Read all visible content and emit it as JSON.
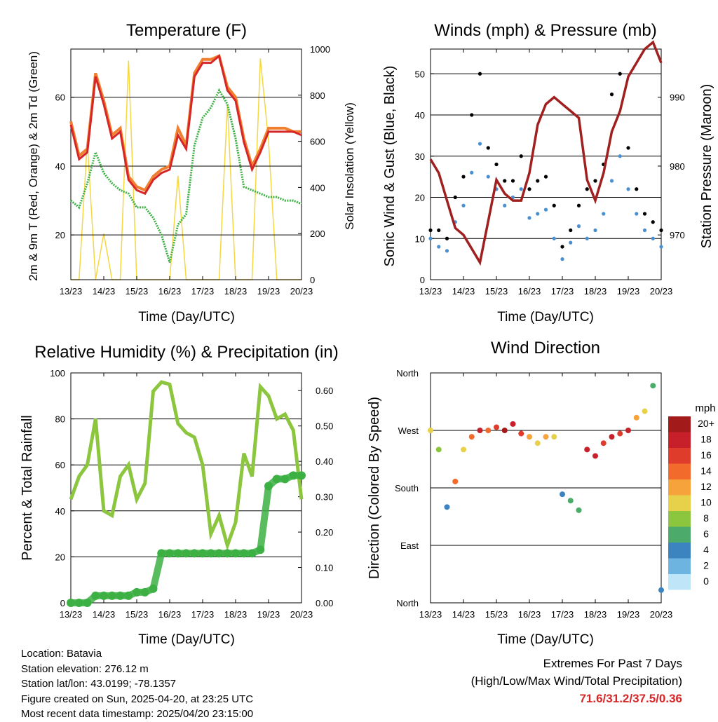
{
  "panels": {
    "temperature": {
      "title": "Temperature (F)",
      "xlabel": "Time (Day/UTC)",
      "ylabel_left": "2m & 9m T (Red, Orange) & 2m Td (Green)",
      "ylabel_right": "Solar Insolation (Yellow)"
    },
    "winds": {
      "title": "Winds (mph) & Pressure (mb)",
      "xlabel": "Time (Day/UTC)",
      "ylabel_left": "Sonic Wind & Gust (Blue, Black)",
      "ylabel_right": "Station Pressure (Maroon)"
    },
    "rh": {
      "title": "Relative Humidity (%) & Precipitation (in)",
      "xlabel": "Time (Day/UTC)",
      "ylabel_left": "Percent & Total Rainfall"
    },
    "wdir": {
      "title": "Wind Direction",
      "xlabel": "Time (Day/UTC)",
      "ylabel_left": "Direction (Colored By Speed)",
      "legend_title": "mph"
    }
  },
  "info": {
    "location": "Location: Batavia",
    "elevation": "Station elevation: 276.12 m",
    "latlon": "Station lat/lon: 43.0199; -78.1357",
    "created": "Figure created on Sun, 2025-04-20, at 23:25 UTC",
    "recent": "Most recent data timestamp: 2025/04/20 23:15:00"
  },
  "extremes": {
    "line1": "Extremes For Past 7 Days",
    "line2": "(High/Low/Max Wind/Total Precipitation)",
    "values": "71.6/31.2/37.5/0.36"
  },
  "colors": {
    "temp2m": "#d62728",
    "temp9m": "#f08030",
    "dewpoint": "#3cb043",
    "solar": "#f5d742",
    "wind": "#4a90d0",
    "gust": "#000000",
    "pressure": "#a02020",
    "rh": "#8cc63f",
    "precip": "#3cb043"
  },
  "chart_data": [
    {
      "type": "line",
      "title": "Temperature (F)",
      "xlabel": "Time (Day/UTC)",
      "xticks": [
        "13/23",
        "14/23",
        "15/23",
        "16/23",
        "17/23",
        "18/23",
        "19/23",
        "20/23"
      ],
      "x_days": [
        0,
        0.25,
        0.5,
        0.75,
        1,
        1.25,
        1.5,
        1.75,
        2,
        2.25,
        2.5,
        2.75,
        3,
        3.25,
        3.5,
        3.75,
        4,
        4.25,
        4.5,
        4.75,
        5,
        5.25,
        5.5,
        5.75,
        6,
        6.25,
        6.5,
        6.75,
        7
      ],
      "ylim": [
        7,
        74
      ],
      "yticks": [
        20,
        40,
        60
      ],
      "y2lim": [
        0,
        1000
      ],
      "y2ticks": [
        0,
        200,
        400,
        600,
        800,
        1000
      ],
      "series": [
        {
          "values": [
            52,
            42,
            44,
            66,
            58,
            48,
            50,
            36,
            33,
            32,
            36,
            38,
            39,
            49,
            45,
            66,
            70,
            70,
            72,
            62,
            59,
            47,
            39,
            44,
            50,
            50,
            50,
            50,
            49
          ]
        },
        {
          "values": [
            53,
            43,
            45,
            67,
            59,
            49,
            51,
            37,
            34,
            33,
            37,
            39,
            40,
            51,
            46,
            67,
            71,
            71,
            72,
            63,
            60,
            48,
            40,
            45,
            51,
            51,
            51,
            50,
            50
          ]
        },
        {
          "values": [
            30,
            28,
            35,
            44,
            38,
            35,
            33,
            32,
            28,
            28,
            25,
            20,
            12,
            23,
            26,
            46,
            54,
            57,
            62,
            58,
            48,
            34,
            33,
            32,
            31,
            31,
            30,
            30,
            29
          ]
        },
        {
          "values": [
            0,
            0,
            600,
            0,
            200,
            0,
            0,
            950,
            0,
            0,
            0,
            0,
            0,
            450,
            0,
            0,
            0,
            0,
            0,
            760,
            0,
            0,
            0,
            960,
            600,
            0,
            0,
            0,
            0
          ]
        }
      ]
    },
    {
      "type": "scatter",
      "title": "Winds (mph) & Pressure (mb)",
      "xlabel": "Time (Day/UTC)",
      "xticks": [
        "13/23",
        "14/23",
        "15/23",
        "16/23",
        "17/23",
        "18/23",
        "19/23",
        "20/23"
      ],
      "x_days": [
        0,
        0.25,
        0.5,
        0.75,
        1,
        1.25,
        1.5,
        1.75,
        2,
        2.25,
        2.5,
        2.75,
        3,
        3.25,
        3.5,
        3.75,
        4,
        4.25,
        4.5,
        4.75,
        5,
        5.25,
        5.5,
        5.75,
        6,
        6.25,
        6.5,
        6.75,
        7
      ],
      "ylim": [
        0,
        56
      ],
      "yticks": [
        0,
        10,
        20,
        30,
        40,
        50
      ],
      "y2lim": [
        963.5,
        997
      ],
      "y2ticks": [
        970,
        980,
        990
      ],
      "series": [
        {
          "values": [
            10,
            8,
            7,
            14,
            18,
            26,
            33,
            25,
            22,
            18,
            20,
            22,
            15,
            16,
            17,
            10,
            5,
            9,
            13,
            10,
            12,
            16,
            24,
            30,
            22,
            16,
            12,
            10,
            8
          ]
        },
        {
          "values": [
            12,
            12,
            10,
            20,
            25,
            40,
            50,
            32,
            28,
            24,
            24,
            30,
            22,
            24,
            25,
            18,
            8,
            12,
            18,
            22,
            24,
            28,
            45,
            50,
            32,
            22,
            16,
            14,
            12
          ]
        },
        {
          "values": [
            981,
            979,
            975,
            971,
            970,
            968,
            966,
            972,
            978,
            976,
            975,
            975,
            979,
            986,
            989,
            990,
            989,
            988,
            987,
            978,
            975,
            979,
            985,
            988,
            993,
            995,
            997,
            998,
            995
          ]
        }
      ]
    },
    {
      "type": "line",
      "title": "Relative Humidity (%) & Precipitation (in)",
      "xlabel": "Time (Day/UTC)",
      "xticks": [
        "13/23",
        "14/23",
        "15/23",
        "16/23",
        "17/23",
        "18/23",
        "19/23",
        "20/23"
      ],
      "x_days": [
        0,
        0.25,
        0.5,
        0.75,
        1,
        1.25,
        1.5,
        1.75,
        2,
        2.25,
        2.5,
        2.75,
        3,
        3.25,
        3.5,
        3.75,
        4,
        4.25,
        4.5,
        4.75,
        5,
        5.25,
        5.5,
        5.75,
        6,
        6.25,
        6.5,
        6.75,
        7
      ],
      "ylim": [
        0,
        100
      ],
      "yticks": [
        0,
        20,
        40,
        60,
        80,
        100
      ],
      "y2lim": [
        0,
        0.65
      ],
      "y2ticks": [
        "0.00",
        "0.10",
        "0.20",
        "0.30",
        "0.40",
        "0.50",
        "0.60"
      ],
      "series": [
        {
          "values": [
            45,
            55,
            60,
            80,
            40,
            38,
            55,
            60,
            45,
            52,
            92,
            96,
            95,
            78,
            74,
            72,
            60,
            30,
            38,
            25,
            35,
            65,
            55,
            94,
            90,
            80,
            82,
            75,
            45
          ]
        },
        {
          "values": [
            0.0,
            0.0,
            0.0,
            0.02,
            0.02,
            0.02,
            0.02,
            0.02,
            0.03,
            0.03,
            0.04,
            0.14,
            0.14,
            0.14,
            0.14,
            0.14,
            0.14,
            0.14,
            0.14,
            0.14,
            0.14,
            0.14,
            0.14,
            0.15,
            0.33,
            0.35,
            0.35,
            0.36,
            0.36
          ]
        }
      ]
    },
    {
      "type": "scatter",
      "title": "Wind Direction",
      "xlabel": "Time (Day/UTC)",
      "xticks": [
        "13/23",
        "14/23",
        "15/23",
        "16/23",
        "17/23",
        "18/23",
        "19/23",
        "20/23"
      ],
      "yticks": [
        "North",
        "East",
        "South",
        "West",
        "North"
      ],
      "ylim": [
        0,
        360
      ],
      "legend_title": "mph",
      "legend_levels": [
        "20+",
        "18",
        "16",
        "14",
        "12",
        "10",
        "8",
        "6",
        "4",
        "2",
        "0"
      ],
      "legend_colors": [
        "#a31a1a",
        "#c8202a",
        "#e03c2c",
        "#f26b2c",
        "#f7a33c",
        "#e8d14a",
        "#8cc63f",
        "#4caa6a",
        "#3c84c0",
        "#6eb4e0",
        "#bfe6f8"
      ],
      "x_days": [
        0,
        0.25,
        0.5,
        0.75,
        1,
        1.25,
        1.5,
        1.75,
        2,
        2.25,
        2.5,
        2.75,
        3,
        3.25,
        3.5,
        3.75,
        4,
        4.25,
        4.5,
        4.75,
        5,
        5.25,
        5.5,
        5.75,
        6,
        6.25,
        6.5,
        6.75,
        7
      ],
      "direction": [
        270,
        240,
        150,
        190,
        240,
        260,
        270,
        270,
        275,
        270,
        280,
        265,
        260,
        250,
        260,
        260,
        170,
        160,
        145,
        240,
        230,
        250,
        260,
        265,
        270,
        290,
        300,
        340,
        20
      ],
      "speed": [
        10,
        8,
        4,
        14,
        10,
        14,
        18,
        14,
        16,
        20,
        18,
        16,
        12,
        10,
        12,
        10,
        4,
        6,
        6,
        18,
        18,
        16,
        18,
        16,
        18,
        12,
        10,
        6,
        4
      ]
    }
  ]
}
